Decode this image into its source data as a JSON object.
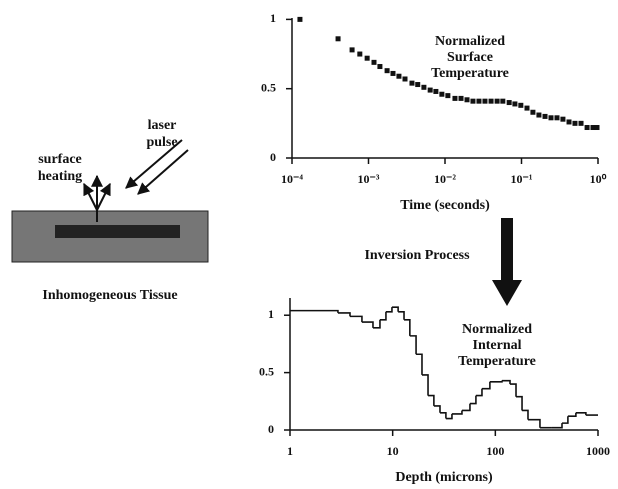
{
  "chart_data": [
    {
      "type": "scatter",
      "xscale": "log",
      "color": "#111111",
      "marker": "square",
      "annotation": [
        "Normalized",
        "Surface",
        "Temperature"
      ],
      "xlabel": "Time (seconds)",
      "x": [
        0.000127,
        0.0004,
        0.00061,
        0.00077,
        0.00096,
        0.00118,
        0.00141,
        0.00175,
        0.00209,
        0.0025,
        0.003,
        0.0037,
        0.0044,
        0.0053,
        0.0064,
        0.0076,
        0.0091,
        0.0109,
        0.0135,
        0.0162,
        0.0194,
        0.0232,
        0.0278,
        0.0333,
        0.04,
        0.048,
        0.057,
        0.069,
        0.082,
        0.098,
        0.118,
        0.141,
        0.169,
        0.203,
        0.243,
        0.291,
        0.348,
        0.418,
        0.5,
        0.6,
        0.72,
        0.86,
        0.97
      ],
      "values": [
        1.0,
        0.86,
        0.78,
        0.75,
        0.72,
        0.69,
        0.66,
        0.63,
        0.61,
        0.59,
        0.57,
        0.54,
        0.53,
        0.51,
        0.49,
        0.48,
        0.46,
        0.45,
        0.43,
        0.43,
        0.42,
        0.41,
        0.41,
        0.41,
        0.41,
        0.41,
        0.41,
        0.4,
        0.39,
        0.38,
        0.36,
        0.33,
        0.31,
        0.3,
        0.29,
        0.29,
        0.28,
        0.26,
        0.25,
        0.25,
        0.22,
        0.22,
        0.22
      ],
      "xlim": [
        0.0001,
        1
      ],
      "ylim": [
        0,
        1.01
      ],
      "xticks": [
        {
          "value": 0.0001,
          "label": "10⁻⁴"
        },
        {
          "value": 0.001,
          "label": "10⁻³"
        },
        {
          "value": 0.01,
          "label": "10⁻²"
        },
        {
          "value": 0.1,
          "label": "10⁻¹"
        },
        {
          "value": 1,
          "label": "10⁰"
        }
      ],
      "yticks": [
        0,
        0.5,
        1
      ]
    },
    {
      "type": "step",
      "xscale": "log",
      "color": "#111111",
      "annotation": [
        "Normalized",
        "Internal",
        "Temperature"
      ],
      "xlabel": "Depth (microns)",
      "x": [
        1,
        2.93,
        3.84,
        5.02,
        6.43,
        7.52,
        8.6,
        9.84,
        11.3,
        12.9,
        14.7,
        16.9,
        19.3,
        22.1,
        25.2,
        28.9,
        33.0,
        37.8,
        47.3,
        56.6,
        64.7,
        74.1,
        88.5,
        116,
        139,
        159,
        182,
        208,
        272,
        356,
        446,
        509,
        609,
        762
      ],
      "values": [
        1.04,
        1.02,
        0.99,
        0.94,
        0.89,
        0.96,
        1.03,
        1.07,
        1.03,
        0.96,
        0.82,
        0.66,
        0.48,
        0.3,
        0.21,
        0.15,
        0.1,
        0.14,
        0.17,
        0.23,
        0.3,
        0.36,
        0.42,
        0.43,
        0.4,
        0.29,
        0.17,
        0.09,
        0.02,
        0.02,
        0.06,
        0.12,
        0.15,
        0.13
      ],
      "xlim": [
        1,
        1000
      ],
      "ylim": [
        0,
        1.15
      ],
      "xticks": [
        1,
        10,
        100,
        1000
      ],
      "yticks": [
        0,
        0.5,
        1
      ]
    }
  ],
  "process_label": "Inversion Process",
  "diagram": {
    "heating_label": [
      "surface",
      "heating"
    ],
    "laser_label": [
      "laser",
      "pulse"
    ],
    "tissue_label": "Inhomogeneous Tissue"
  }
}
